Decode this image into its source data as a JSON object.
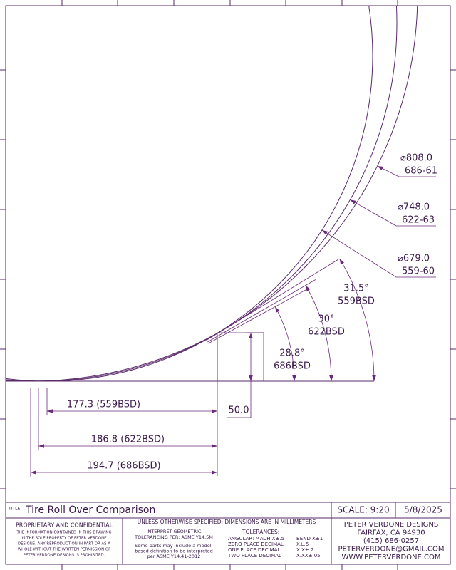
{
  "dimensions": {
    "diameters": [
      {
        "value": "⌀808.0",
        "size": "686-61"
      },
      {
        "value": "⌀748.0",
        "size": "622-63"
      },
      {
        "value": "⌀679.0",
        "size": "559-60"
      }
    ],
    "angles": [
      {
        "value": "31.5°",
        "bsd": "559BSD"
      },
      {
        "value": "30°",
        "bsd": "622BSD"
      },
      {
        "value": "28.8°",
        "bsd": "686BSD"
      }
    ],
    "lengths": [
      "177.3 (559BSD)",
      "186.8 (622BSD)",
      "194.7 (686BSD)"
    ],
    "step_height": "50.0"
  },
  "title_block": {
    "title_label": "TITLE:",
    "title": "Tire Roll Over Comparison",
    "scale": "SCALE: 9:20",
    "date": "5/8/2025",
    "proprietary": {
      "heading": "PROPRIETARY AND CONFIDENTIAL",
      "lines": [
        "THE INFORMATION CONTAINED IN THIS DRAWING",
        "IS THE SOLE PROPERTY OF PETER VERDONE",
        "DESIGNS.  ANY  REPRODUCTION IN PART OR AS A",
        "WHOLE WITHOUT THE WRITTEN PERMISSION OF",
        "PETER VERDONE DESIGNS IS PROHIBITED."
      ]
    },
    "units": "UNLESS OTHERWISE SPECIFIED: DIMENSIONS ARE IN MILLIMETERS",
    "interpret": [
      "INTERPRET GEOMETRIC",
      "TOLERANCING PER: ASME Y14.5M"
    ],
    "model_note": [
      "Some parts may include a model-",
      "based definition to be interpreted",
      "per ASME Y14.41-2012"
    ],
    "tolerances": {
      "heading": "TOLERANCES:",
      "rows": [
        [
          "ANGULAR: MACH X±.5",
          "BEND X±1"
        ],
        [
          "ZERO PLACE DECIMAL",
          "X±.5"
        ],
        [
          "ONE PLACE DECIMAL",
          "X.X±.2"
        ],
        [
          "TWO PLACE DECIMAL",
          "X.XX±.05"
        ]
      ]
    },
    "company": [
      "PETER VERDONE DESIGNS",
      "FAIRFAX, CA 94930",
      "(415) 686-0257",
      "PETERVERDONE@GMAIL.COM",
      "WWW.PETERVERDONE.COM"
    ]
  }
}
